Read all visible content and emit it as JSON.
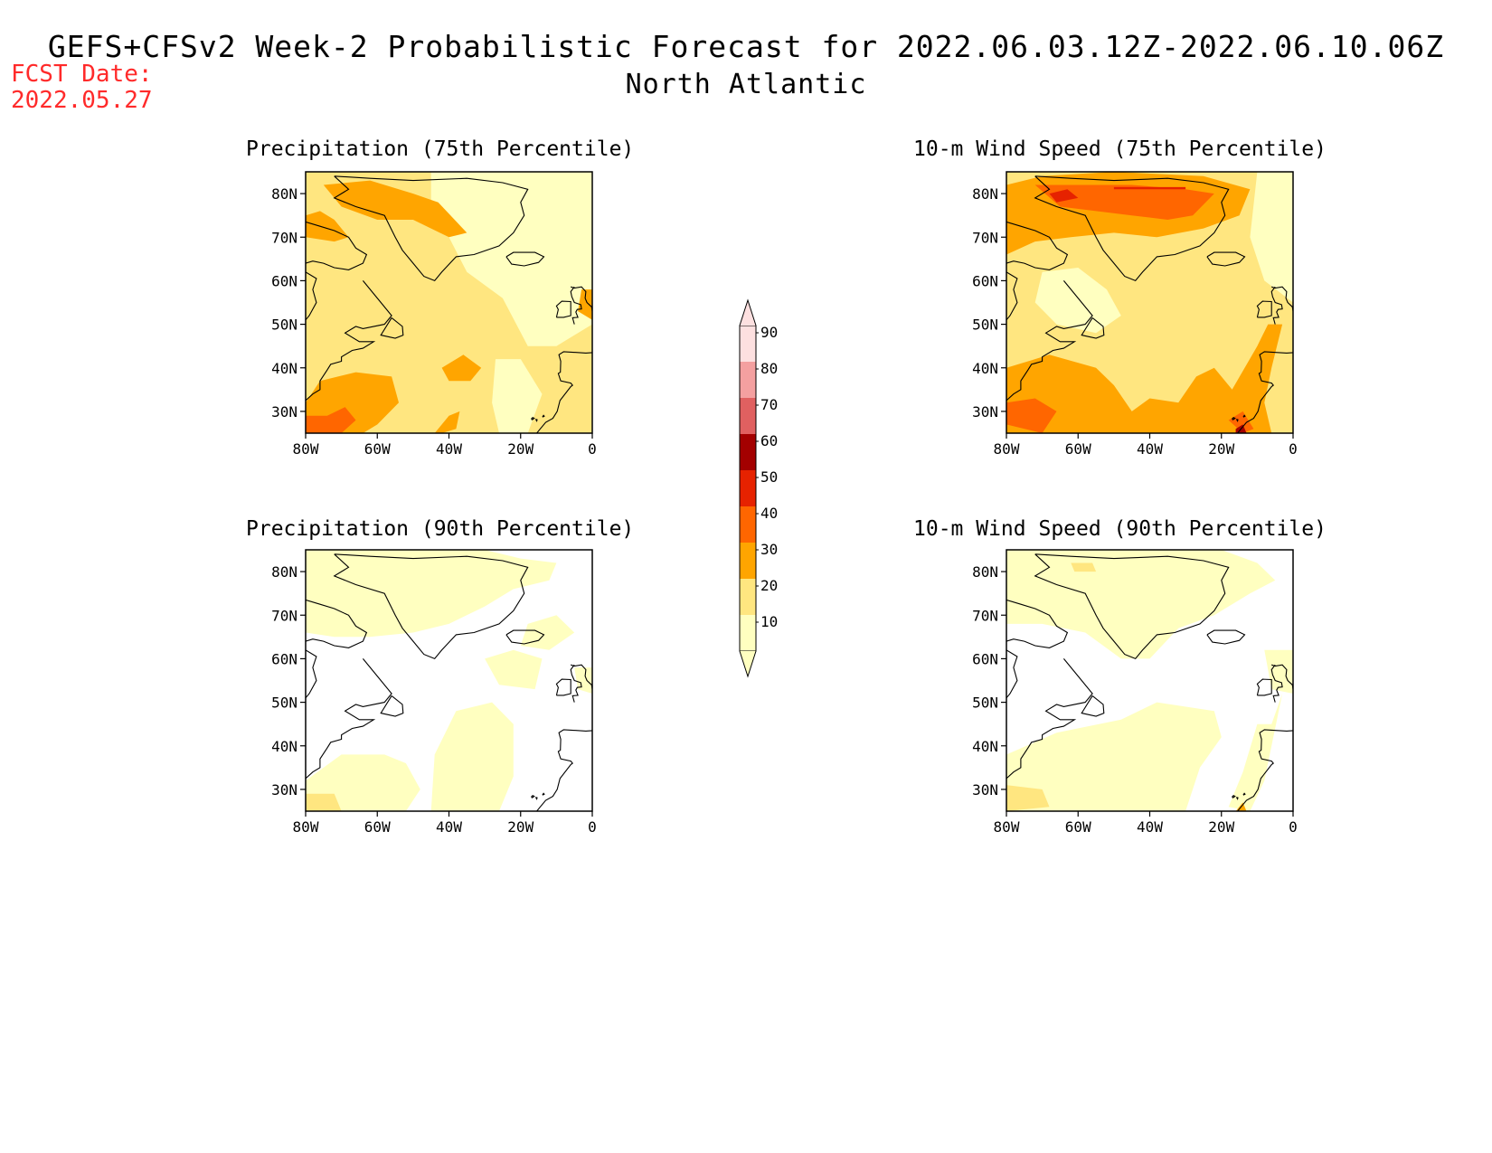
{
  "title": "GEFS+CFSv2 Week-2 Probabilistic Forecast for 2022.06.03.12Z-2022.06.10.06Z",
  "subtitle": "North Atlantic",
  "fcst_label": "FCST Date:",
  "fcst_date": "2022.05.27",
  "colors": {
    "c10": "#ffffc0",
    "c20": "#ffe680",
    "c30": "#ffa500",
    "c40": "#ff6600",
    "c50": "#e62200",
    "c60": "#a30000",
    "c70": "#e06060",
    "c80": "#f4a0a0",
    "c90": "#fde0e0",
    "coast": "#000000",
    "red_text": "#ff2a2a"
  },
  "chart_data": [
    {
      "type": "heatmap",
      "title": "Precipitation (75th Percentile)",
      "xlim": [
        -80,
        0
      ],
      "ylim": [
        25,
        85
      ],
      "xticks": [
        "80W",
        "60W",
        "40W",
        "20W",
        "0"
      ],
      "yticks": [
        "30N",
        "40N",
        "50N",
        "60N",
        "70N",
        "80N"
      ],
      "background": "c20",
      "regions": [
        {
          "level": "c10",
          "polygon": [
            [
              -45,
              85
            ],
            [
              0,
              85
            ],
            [
              0,
              50
            ],
            [
              -10,
              45
            ],
            [
              -18,
              45
            ],
            [
              -25,
              56
            ],
            [
              -35,
              62
            ],
            [
              -40,
              70
            ],
            [
              -45,
              75
            ]
          ]
        },
        {
          "level": "c10",
          "polygon": [
            [
              -27,
              42
            ],
            [
              -20,
              42
            ],
            [
              -14,
              34
            ],
            [
              -18,
              25
            ],
            [
              -26,
              25
            ],
            [
              -28,
              32
            ]
          ]
        },
        {
          "level": "c30",
          "polygon": [
            [
              -75,
              82
            ],
            [
              -62,
              83
            ],
            [
              -50,
              80
            ],
            [
              -43,
              78
            ],
            [
              -35,
              71
            ],
            [
              -40,
              70
            ],
            [
              -50,
              74
            ],
            [
              -60,
              74
            ],
            [
              -70,
              77
            ]
          ]
        },
        {
          "level": "c30",
          "polygon": [
            [
              -80,
              75
            ],
            [
              -76,
              76
            ],
            [
              -72,
              74
            ],
            [
              -68,
              70
            ],
            [
              -72,
              69
            ],
            [
              -80,
              70
            ]
          ]
        },
        {
          "level": "c30",
          "polygon": [
            [
              -80,
              27
            ],
            [
              -80,
              32
            ],
            [
              -76,
              37
            ],
            [
              -66,
              39
            ],
            [
              -56,
              38
            ],
            [
              -54,
              32
            ],
            [
              -60,
              27
            ],
            [
              -64,
              25
            ],
            [
              -78,
              25
            ]
          ]
        },
        {
          "level": "c30",
          "polygon": [
            [
              -42,
              40
            ],
            [
              -36,
              43
            ],
            [
              -31,
              40
            ],
            [
              -34,
              37
            ],
            [
              -40,
              37
            ]
          ]
        },
        {
          "level": "c30",
          "polygon": [
            [
              -42,
              25
            ],
            [
              -38,
              26
            ],
            [
              -37,
              30
            ],
            [
              -40,
              29
            ],
            [
              -44,
              25
            ]
          ]
        },
        {
          "level": "c30",
          "polygon": [
            [
              -3,
              58
            ],
            [
              0,
              58
            ],
            [
              0,
              51
            ],
            [
              -4,
              53
            ]
          ]
        },
        {
          "level": "c40",
          "polygon": [
            [
              -80,
              25
            ],
            [
              -80,
              29
            ],
            [
              -74,
              29
            ],
            [
              -69,
              31
            ],
            [
              -66,
              28
            ],
            [
              -70,
              25
            ]
          ]
        }
      ]
    },
    {
      "type": "heatmap",
      "title": "10-m Wind Speed (75th Percentile)",
      "xlim": [
        -80,
        0
      ],
      "ylim": [
        25,
        85
      ],
      "xticks": [
        "80W",
        "60W",
        "40W",
        "20W",
        "0"
      ],
      "yticks": [
        "30N",
        "40N",
        "50N",
        "60N",
        "70N",
        "80N"
      ],
      "background": "c20",
      "regions": [
        {
          "level": "c10",
          "polygon": [
            [
              -10,
              85
            ],
            [
              0,
              85
            ],
            [
              0,
              55
            ],
            [
              -8,
              60
            ],
            [
              -12,
              70
            ]
          ]
        },
        {
          "level": "c10",
          "polygon": [
            [
              -70,
              62
            ],
            [
              -60,
              63
            ],
            [
              -52,
              58
            ],
            [
              -48,
              52
            ],
            [
              -55,
              48
            ],
            [
              -66,
              50
            ],
            [
              -72,
              55
            ]
          ]
        },
        {
          "level": "c30",
          "polygon": [
            [
              -80,
              82
            ],
            [
              -70,
              84
            ],
            [
              -50,
              85
            ],
            [
              -25,
              84
            ],
            [
              -12,
              81
            ],
            [
              -15,
              75
            ],
            [
              -25,
              72
            ],
            [
              -38,
              70
            ],
            [
              -50,
              71
            ],
            [
              -62,
              70
            ],
            [
              -72,
              69
            ],
            [
              -80,
              66
            ]
          ]
        },
        {
          "level": "c30",
          "polygon": [
            [
              -80,
              25
            ],
            [
              -80,
              40
            ],
            [
              -68,
              43
            ],
            [
              -55,
              40
            ],
            [
              -50,
              36
            ],
            [
              -45,
              30
            ],
            [
              -40,
              33
            ],
            [
              -32,
              32
            ],
            [
              -27,
              38
            ],
            [
              -22,
              40
            ],
            [
              -17,
              35
            ],
            [
              -10,
              45
            ],
            [
              -7,
              50
            ],
            [
              -3,
              50
            ],
            [
              -6,
              40
            ],
            [
              -8,
              32
            ],
            [
              -6,
              25
            ]
          ]
        },
        {
          "level": "c40",
          "polygon": [
            [
              -72,
              82
            ],
            [
              -60,
              82
            ],
            [
              -45,
              82
            ],
            [
              -30,
              81
            ],
            [
              -22,
              80
            ],
            [
              -28,
              75
            ],
            [
              -35,
              74
            ],
            [
              -45,
              75
            ],
            [
              -55,
              76
            ],
            [
              -65,
              77
            ]
          ]
        },
        {
          "level": "c40",
          "polygon": [
            [
              -80,
              27
            ],
            [
              -80,
              32
            ],
            [
              -72,
              33
            ],
            [
              -66,
              30
            ],
            [
              -70,
              25
            ]
          ]
        },
        {
          "level": "c40",
          "polygon": [
            [
              -18,
              28
            ],
            [
              -14,
              30
            ],
            [
              -11,
              26
            ],
            [
              -14,
              25
            ]
          ]
        },
        {
          "level": "c50",
          "polygon": [
            [
              -68,
              80
            ],
            [
              -63,
              81
            ],
            [
              -60,
              79
            ],
            [
              -66,
              78
            ]
          ]
        },
        {
          "level": "c50",
          "polygon": [
            [
              -50,
              81.5
            ],
            [
              -30,
              81.5
            ],
            [
              -30,
              81
            ],
            [
              -50,
              81
            ]
          ]
        },
        {
          "level": "c60",
          "polygon": [
            [
              -16,
              26
            ],
            [
              -14,
              27
            ],
            [
              -13,
              25
            ],
            [
              -16,
              25
            ]
          ]
        }
      ]
    },
    {
      "type": "heatmap",
      "title": "Precipitation (90th Percentile)",
      "xlim": [
        -80,
        0
      ],
      "ylim": [
        25,
        85
      ],
      "xticks": [
        "80W",
        "60W",
        "40W",
        "20W",
        "0"
      ],
      "yticks": [
        "30N",
        "40N",
        "50N",
        "60N",
        "70N",
        "80N"
      ],
      "background": "white",
      "regions": [
        {
          "level": "c10",
          "polygon": [
            [
              -80,
              85
            ],
            [
              -30,
              85
            ],
            [
              -20,
              83
            ],
            [
              -10,
              82
            ],
            [
              -12,
              78
            ],
            [
              -22,
              76
            ],
            [
              -30,
              72
            ],
            [
              -40,
              68
            ],
            [
              -50,
              66
            ],
            [
              -62,
              65
            ],
            [
              -72,
              65
            ],
            [
              -80,
              66
            ]
          ]
        },
        {
          "level": "c10",
          "polygon": [
            [
              -18,
              68
            ],
            [
              -10,
              70
            ],
            [
              -5,
              66
            ],
            [
              -12,
              62
            ],
            [
              -20,
              63
            ]
          ]
        },
        {
          "level": "c10",
          "polygon": [
            [
              -30,
              60
            ],
            [
              -22,
              62
            ],
            [
              -14,
              60
            ],
            [
              -16,
              53
            ],
            [
              -26,
              54
            ]
          ]
        },
        {
          "level": "c10",
          "polygon": [
            [
              -80,
              25
            ],
            [
              -80,
              32
            ],
            [
              -70,
              38
            ],
            [
              -58,
              38
            ],
            [
              -52,
              36
            ],
            [
              -48,
              30
            ],
            [
              -52,
              25
            ]
          ]
        },
        {
          "level": "c10",
          "polygon": [
            [
              -45,
              25
            ],
            [
              -44,
              38
            ],
            [
              -38,
              48
            ],
            [
              -28,
              50
            ],
            [
              -22,
              45
            ],
            [
              -22,
              33
            ],
            [
              -26,
              25
            ]
          ]
        },
        {
          "level": "c10",
          "polygon": [
            [
              -5,
              58
            ],
            [
              0,
              58
            ],
            [
              0,
              52
            ],
            [
              -4,
              53
            ]
          ]
        },
        {
          "level": "c20",
          "polygon": [
            [
              -80,
              25
            ],
            [
              -80,
              29
            ],
            [
              -72,
              29
            ],
            [
              -70,
              25
            ]
          ]
        }
      ]
    },
    {
      "type": "heatmap",
      "title": "10-m Wind Speed (90th Percentile)",
      "xlim": [
        -80,
        0
      ],
      "ylim": [
        25,
        85
      ],
      "xticks": [
        "80W",
        "60W",
        "40W",
        "20W",
        "0"
      ],
      "yticks": [
        "30N",
        "40N",
        "50N",
        "60N",
        "70N",
        "80N"
      ],
      "background": "white",
      "regions": [
        {
          "level": "c10",
          "polygon": [
            [
              -80,
              85
            ],
            [
              -20,
              85
            ],
            [
              -10,
              82
            ],
            [
              -5,
              78
            ],
            [
              -12,
              75
            ],
            [
              -22,
              70
            ],
            [
              -32,
              67
            ],
            [
              -40,
              60
            ],
            [
              -48,
              60
            ],
            [
              -58,
              66
            ],
            [
              -70,
              68
            ],
            [
              -80,
              68
            ]
          ]
        },
        {
          "level": "c10",
          "polygon": [
            [
              -80,
              25
            ],
            [
              -80,
              38
            ],
            [
              -66,
              43
            ],
            [
              -48,
              46
            ],
            [
              -38,
              50
            ],
            [
              -22,
              48
            ],
            [
              -20,
              42
            ],
            [
              -26,
              35
            ],
            [
              -30,
              25
            ]
          ]
        },
        {
          "level": "c10",
          "polygon": [
            [
              -10,
              45
            ],
            [
              -6,
              45
            ],
            [
              -3,
              52
            ],
            [
              -6,
              40
            ],
            [
              -8,
              32
            ],
            [
              -12,
              25
            ],
            [
              -18,
              26
            ],
            [
              -14,
              34
            ]
          ]
        },
        {
          "level": "c10",
          "polygon": [
            [
              -8,
              62
            ],
            [
              0,
              62
            ],
            [
              0,
              52
            ],
            [
              -6,
              53
            ]
          ]
        },
        {
          "level": "c20",
          "polygon": [
            [
              -80,
              25
            ],
            [
              -80,
              31
            ],
            [
              -70,
              30
            ],
            [
              -68,
              26
            ]
          ]
        },
        {
          "level": "c20",
          "polygon": [
            [
              -62,
              82
            ],
            [
              -56,
              82
            ],
            [
              -55,
              80
            ],
            [
              -61,
              80
            ]
          ]
        },
        {
          "level": "c30",
          "polygon": [
            [
              -16,
              25
            ],
            [
              -14,
              27
            ],
            [
              -13,
              25
            ]
          ]
        }
      ]
    }
  ],
  "colorbar": {
    "levels": [
      "10",
      "20",
      "30",
      "40",
      "50",
      "60",
      "70",
      "80",
      "90"
    ],
    "colors": [
      "c10",
      "c20",
      "c30",
      "c40",
      "c50",
      "c60",
      "c70",
      "c80",
      "c90"
    ]
  }
}
